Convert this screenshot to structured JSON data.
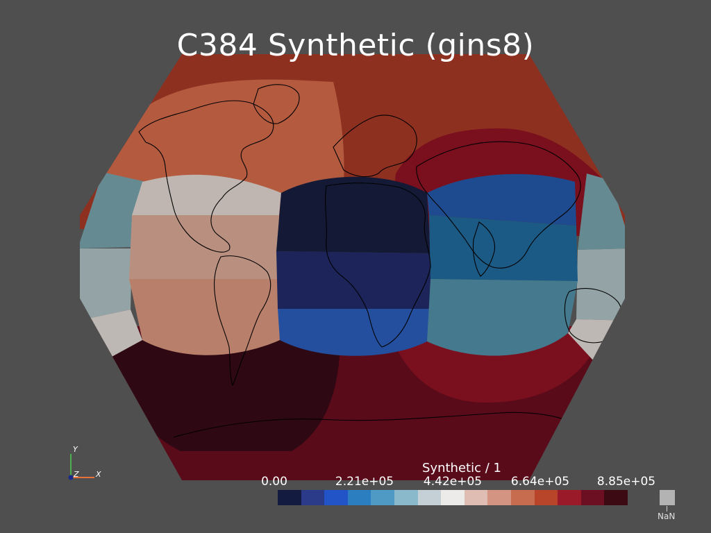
{
  "title": "C384 Synthetic (gins8)",
  "colorbar": {
    "title": "Synthetic / 1",
    "ticks": [
      "0.00",
      "2.21e+05",
      "4.42e+05",
      "6.64e+05",
      "8.85e+05"
    ],
    "nan_label": "NaN",
    "colors": [
      "#141b41",
      "#2c3a8a",
      "#2354c7",
      "#2b7fc1",
      "#4e9ac5",
      "#8bb9cc",
      "#c4d0d6",
      "#ecebea",
      "#dfbdb2",
      "#d39582",
      "#c76c4e",
      "#b8442a",
      "#9a1a2a",
      "#6c0f22",
      "#3c0a12"
    ]
  },
  "axes": {
    "x": "X",
    "y": "Y",
    "z": "Z"
  },
  "colors": {
    "background": "#4f4f4f",
    "top_band": "#8e3020",
    "north_face": "#b45a3f",
    "left_face_top": "#bfb6b1",
    "left_face_mid": "#b98f80",
    "left_face_bottom": "#b8806a",
    "center_face_top": "#141a35",
    "center_face_mid": "#1c2459",
    "center_face_bottom": "#234f9e",
    "right_face_top": "#1e4b8f",
    "right_face_mid": "#1c5a86",
    "right_face_bottom": "#457a8e",
    "far_face_top": "#658a91",
    "far_face_mid": "#93a3a6",
    "far_face_bottom": "#bdb8b4",
    "east_cap": "#7a0f1e",
    "south_face": "#5a0b1a",
    "south_dark": "#2e0812",
    "coastline": "#000000"
  }
}
